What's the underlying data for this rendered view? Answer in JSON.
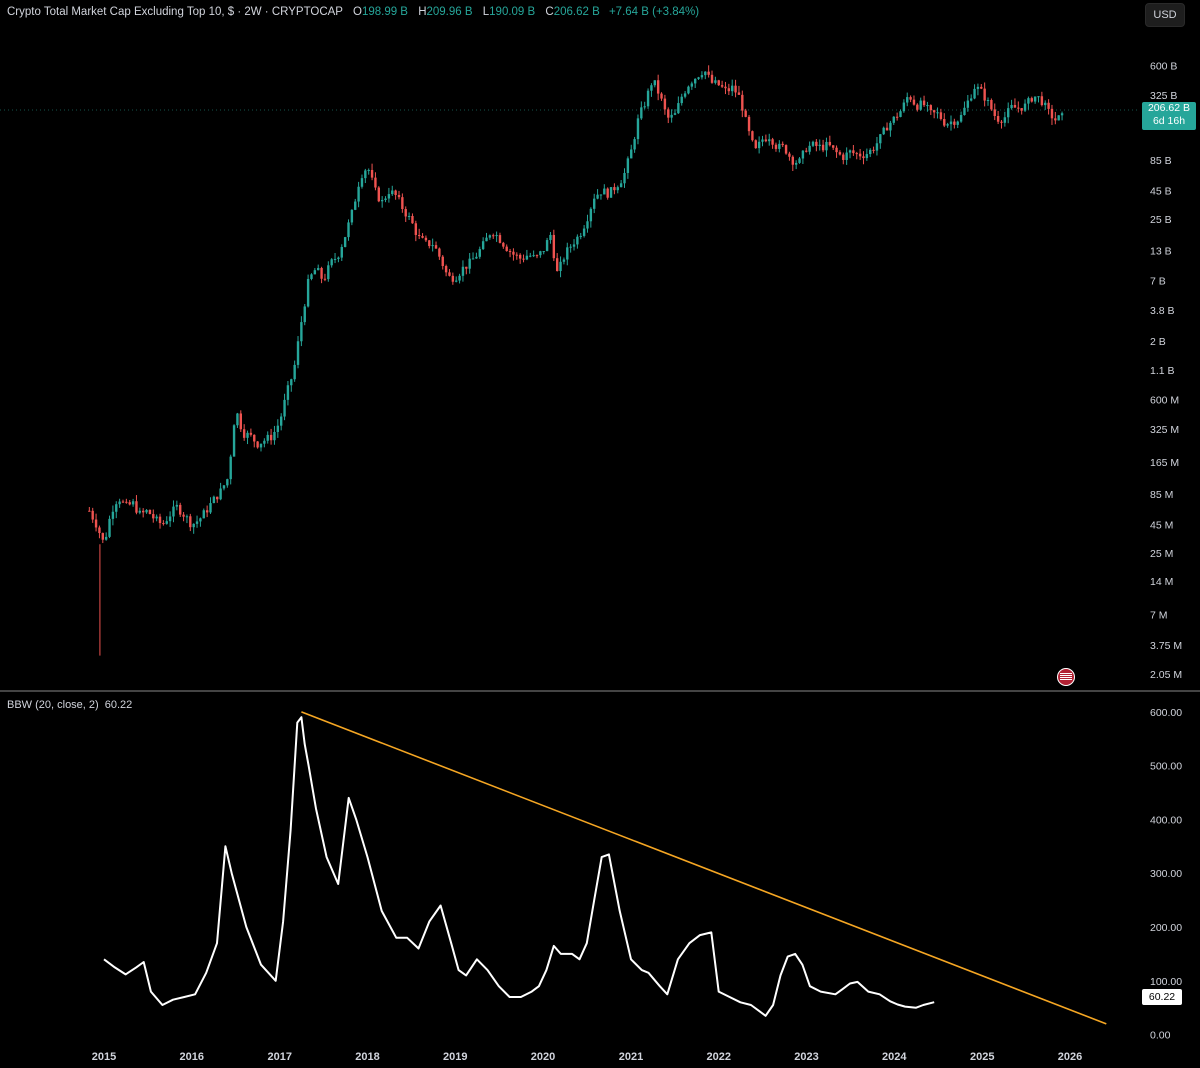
{
  "header": {
    "title": "Crypto Total Market Cap Excluding Top 10, $ · 2W · CRYPTOCAP",
    "o_label": "O",
    "o_value": "198.99 B",
    "h_label": "H",
    "h_value": "209.96 B",
    "l_label": "L",
    "l_value": "190.09 B",
    "c_label": "C",
    "c_value": "206.62 B",
    "change": "+7.64 B (+3.84%)"
  },
  "currency_button": "USD",
  "price_tag": {
    "price": "206.62 B",
    "countdown": "6d 16h"
  },
  "indicator": {
    "title": "BBW (20, close, 2)",
    "value": "60.22",
    "tag": "60.22"
  },
  "colors": {
    "up": "#26a69a",
    "down": "#ef5350",
    "bbw_line": "#ffffff",
    "trendline": "#f5a623",
    "background": "#000000"
  },
  "icons": {
    "flag": "us-flag-icon"
  },
  "chart_data": [
    {
      "type": "candlestick",
      "title": "Crypto Total Market Cap Excluding Top 10, $ · 2W · CRYPTOCAP",
      "scale": "log",
      "price_axis_ticks": [
        "600 B",
        "325 B",
        "85 B",
        "45 B",
        "25 B",
        "13 B",
        "7 B",
        "3.8 B",
        "2 B",
        "1.1 B",
        "600 M",
        "325 M",
        "165 M",
        "85 M",
        "45 M",
        "25 M",
        "14 M",
        "7 M",
        "3.75 M",
        "2.05 M"
      ],
      "price_axis_values": [
        600000000000.0,
        325000000000.0,
        85000000000.0,
        45000000000.0,
        25000000000.0,
        13000000000.0,
        7000000000.0,
        3800000000.0,
        2000000000.0,
        1100000000.0,
        600000000.0,
        325000000.0,
        165000000.0,
        85000000.0,
        45000000.0,
        25000000.0,
        14000000.0,
        7000000.0,
        3750000.0,
        2050000.0
      ],
      "ylim": [
        1600000.0,
        1300000000000.0
      ],
      "close_path": [
        [
          "2014-11-01",
          60000000.0
        ],
        [
          "2014-12-01",
          45000000.0
        ],
        [
          "2015-01-01",
          30000000.0
        ],
        [
          "2015-02-01",
          60000000.0
        ],
        [
          "2015-03-01",
          80000000.0
        ],
        [
          "2015-04-01",
          65000000.0
        ],
        [
          "2015-05-01",
          70000000.0
        ],
        [
          "2015-06-01",
          55000000.0
        ],
        [
          "2015-07-01",
          60000000.0
        ],
        [
          "2015-08-01",
          50000000.0
        ],
        [
          "2015-09-01",
          45000000.0
        ],
        [
          "2015-10-01",
          55000000.0
        ],
        [
          "2015-11-01",
          65000000.0
        ],
        [
          "2015-12-01",
          55000000.0
        ],
        [
          "2016-01-01",
          45000000.0
        ],
        [
          "2016-02-01",
          50000000.0
        ],
        [
          "2016-03-01",
          60000000.0
        ],
        [
          "2016-04-01",
          75000000.0
        ],
        [
          "2016-05-01",
          90000000.0
        ],
        [
          "2016-06-01",
          120000000.0
        ],
        [
          "2016-07-01",
          500000000.0
        ],
        [
          "2016-08-01",
          300000000.0
        ],
        [
          "2016-09-01",
          280000000.0
        ],
        [
          "2016-10-01",
          240000000.0
        ],
        [
          "2016-11-01",
          260000000.0
        ],
        [
          "2016-12-01",
          280000000.0
        ],
        [
          "2017-01-01",
          380000000.0
        ],
        [
          "2017-02-01",
          700000000.0
        ],
        [
          "2017-03-01",
          1100000000.0
        ],
        [
          "2017-04-01",
          3000000000.0
        ],
        [
          "2017-05-01",
          7000000000.0
        ],
        [
          "2017-06-01",
          9000000000.0
        ],
        [
          "2017-07-01",
          7000000000.0
        ],
        [
          "2017-08-01",
          10000000000.0
        ],
        [
          "2017-09-01",
          12000000000.0
        ],
        [
          "2017-10-01",
          18000000000.0
        ],
        [
          "2017-11-01",
          30000000000.0
        ],
        [
          "2017-12-01",
          60000000000.0
        ],
        [
          "2018-01-01",
          75000000000.0
        ],
        [
          "2018-02-01",
          45000000000.0
        ],
        [
          "2018-03-01",
          35000000000.0
        ],
        [
          "2018-04-01",
          45000000000.0
        ],
        [
          "2018-05-01",
          40000000000.0
        ],
        [
          "2018-06-01",
          30000000000.0
        ],
        [
          "2018-07-01",
          24000000000.0
        ],
        [
          "2018-08-01",
          17000000000.0
        ],
        [
          "2018-09-01",
          15000000000.0
        ],
        [
          "2018-10-01",
          15000000000.0
        ],
        [
          "2018-11-01",
          11000000000.0
        ],
        [
          "2018-12-01",
          7500000000.0
        ],
        [
          "2019-01-01",
          7500000000.0
        ],
        [
          "2019-02-01",
          9000000000.0
        ],
        [
          "2019-03-01",
          10000000000.0
        ],
        [
          "2019-04-01",
          12000000000.0
        ],
        [
          "2019-05-01",
          15000000000.0
        ],
        [
          "2019-06-01",
          20000000000.0
        ],
        [
          "2019-07-01",
          17000000000.0
        ],
        [
          "2019-08-01",
          14000000000.0
        ],
        [
          "2019-09-01",
          12000000000.0
        ],
        [
          "2019-10-01",
          11000000000.0
        ],
        [
          "2019-11-01",
          12000000000.0
        ],
        [
          "2019-12-01",
          11000000000.0
        ],
        [
          "2020-01-01",
          13000000000.0
        ],
        [
          "2020-02-01",
          18000000000.0
        ],
        [
          "2020-03-01",
          8000000000.0
        ],
        [
          "2020-04-01",
          12000000000.0
        ],
        [
          "2020-05-01",
          15000000000.0
        ],
        [
          "2020-06-01",
          18000000000.0
        ],
        [
          "2020-07-01",
          25000000000.0
        ],
        [
          "2020-08-01",
          40000000000.0
        ],
        [
          "2020-09-01",
          45000000000.0
        ],
        [
          "2020-10-01",
          42000000000.0
        ],
        [
          "2020-11-01",
          50000000000.0
        ],
        [
          "2020-12-01",
          60000000000.0
        ],
        [
          "2021-01-01",
          100000000000.0
        ],
        [
          "2021-02-01",
          200000000000.0
        ],
        [
          "2021-03-01",
          280000000000.0
        ],
        [
          "2021-04-01",
          450000000000.0
        ],
        [
          "2021-05-01",
          320000000000.0
        ],
        [
          "2021-06-01",
          200000000000.0
        ],
        [
          "2021-07-01",
          210000000000.0
        ],
        [
          "2021-08-01",
          320000000000.0
        ],
        [
          "2021-09-01",
          420000000000.0
        ],
        [
          "2021-10-01",
          480000000000.0
        ],
        [
          "2021-11-01",
          550000000000.0
        ],
        [
          "2021-12-01",
          420000000000.0
        ],
        [
          "2022-01-01",
          400000000000.0
        ],
        [
          "2022-02-01",
          350000000000.0
        ],
        [
          "2022-03-01",
          380000000000.0
        ],
        [
          "2022-04-01",
          300000000000.0
        ],
        [
          "2022-05-01",
          160000000000.0
        ],
        [
          "2022-06-01",
          100000000000.0
        ],
        [
          "2022-07-01",
          130000000000.0
        ],
        [
          "2022-08-01",
          140000000000.0
        ],
        [
          "2022-09-01",
          110000000000.0
        ],
        [
          "2022-10-01",
          110000000000.0
        ],
        [
          "2022-11-01",
          85000000000.0
        ],
        [
          "2022-12-01",
          80000000000.0
        ],
        [
          "2023-01-01",
          110000000000.0
        ],
        [
          "2023-02-01",
          115000000000.0
        ],
        [
          "2023-03-01",
          110000000000.0
        ],
        [
          "2023-04-01",
          115000000000.0
        ],
        [
          "2023-05-01",
          100000000000.0
        ],
        [
          "2023-06-01",
          90000000000.0
        ],
        [
          "2023-07-01",
          100000000000.0
        ],
        [
          "2023-08-01",
          95000000000.0
        ],
        [
          "2023-09-01",
          95000000000.0
        ],
        [
          "2023-10-01",
          105000000000.0
        ],
        [
          "2023-11-01",
          130000000000.0
        ],
        [
          "2023-12-01",
          170000000000.0
        ],
        [
          "2024-01-01",
          200000000000.0
        ],
        [
          "2024-02-01",
          240000000000.0
        ],
        [
          "2024-03-01",
          330000000000.0
        ],
        [
          "2024-04-01",
          260000000000.0
        ],
        [
          "2024-05-01",
          270000000000.0
        ],
        [
          "2024-06-01",
          220000000000.0
        ],
        [
          "2024-07-01",
          220000000000.0
        ],
        [
          "2024-08-01",
          180000000000.0
        ],
        [
          "2024-09-01",
          190000000000.0
        ],
        [
          "2024-10-01",
          200000000000.0
        ],
        [
          "2024-11-01",
          280000000000.0
        ],
        [
          "2024-12-01",
          390000000000.0
        ],
        [
          "2025-01-01",
          340000000000.0
        ],
        [
          "2025-02-01",
          260000000000.0
        ],
        [
          "2025-03-01",
          200000000000.0
        ],
        [
          "2025-04-01",
          200000000000.0
        ],
        [
          "2025-05-01",
          250000000000.0
        ],
        [
          "2025-06-01",
          250000000000.0
        ],
        [
          "2025-07-01",
          260000000000.0
        ],
        [
          "2025-08-01",
          320000000000.0
        ],
        [
          "2025-09-01",
          300000000000.0
        ],
        [
          "2025-10-01",
          230000000000.0
        ],
        [
          "2025-11-01",
          195000000000.0
        ],
        [
          "2025-12-01",
          206620000000.0
        ]
      ],
      "last_close": 206620000000.0
    },
    {
      "type": "line",
      "title": "BBW (20, close, 2)",
      "y_ticks": [
        600,
        500,
        400,
        300,
        200,
        100,
        0
      ],
      "y_tick_labels": [
        "600.00",
        "500.00",
        "400.00",
        "300.00",
        "200.00",
        "100.00",
        "0.00"
      ],
      "ylim": [
        -10,
        622
      ],
      "x_ticks": [
        "2015",
        "2016",
        "2017",
        "2018",
        "2019",
        "2020",
        "2021",
        "2022",
        "2023",
        "2024",
        "2025",
        "2026"
      ],
      "series": [
        {
          "values": [
            [
              "2015-01-01",
              140
            ],
            [
              "2015-02-15",
              125
            ],
            [
              "2015-04-01",
              112
            ],
            [
              "2015-05-15",
              125
            ],
            [
              "2015-06-15",
              135
            ],
            [
              "2015-07-15",
              80
            ],
            [
              "2015-09-01",
              55
            ],
            [
              "2015-10-15",
              65
            ],
            [
              "2015-12-01",
              70
            ],
            [
              "2016-01-15",
              75
            ],
            [
              "2016-03-01",
              115
            ],
            [
              "2016-04-15",
              170
            ],
            [
              "2016-05-20",
              350
            ],
            [
              "2016-06-15",
              300
            ],
            [
              "2016-08-15",
              200
            ],
            [
              "2016-10-15",
              130
            ],
            [
              "2016-12-15",
              100
            ],
            [
              "2017-01-15",
              210
            ],
            [
              "2017-02-15",
              380
            ],
            [
              "2017-03-15",
              580
            ],
            [
              "2017-04-01",
              590
            ],
            [
              "2017-04-15",
              540
            ],
            [
              "2017-05-01",
              500
            ],
            [
              "2017-06-01",
              420
            ],
            [
              "2017-07-15",
              330
            ],
            [
              "2017-09-01",
              280
            ],
            [
              "2017-10-15",
              440
            ],
            [
              "2017-11-15",
              400
            ],
            [
              "2018-01-01",
              330
            ],
            [
              "2018-03-01",
              230
            ],
            [
              "2018-05-01",
              180
            ],
            [
              "2018-06-15",
              180
            ],
            [
              "2018-08-01",
              160
            ],
            [
              "2018-09-15",
              210
            ],
            [
              "2018-11-01",
              240
            ],
            [
              "2018-12-15",
              170
            ],
            [
              "2019-01-15",
              120
            ],
            [
              "2019-02-15",
              110
            ],
            [
              "2019-04-01",
              140
            ],
            [
              "2019-05-15",
              120
            ],
            [
              "2019-07-01",
              90
            ],
            [
              "2019-08-15",
              70
            ],
            [
              "2019-10-01",
              70
            ],
            [
              "2019-11-15",
              80
            ],
            [
              "2019-12-15",
              90
            ],
            [
              "2020-01-15",
              120
            ],
            [
              "2020-02-15",
              165
            ],
            [
              "2020-03-15",
              150
            ],
            [
              "2020-05-01",
              150
            ],
            [
              "2020-06-01",
              140
            ],
            [
              "2020-07-01",
              170
            ],
            [
              "2020-08-01",
              250
            ],
            [
              "2020-09-01",
              330
            ],
            [
              "2020-10-01",
              335
            ],
            [
              "2020-11-15",
              230
            ],
            [
              "2021-01-01",
              140
            ],
            [
              "2021-02-15",
              120
            ],
            [
              "2021-03-15",
              115
            ],
            [
              "2021-05-01",
              90
            ],
            [
              "2021-06-01",
              75
            ],
            [
              "2021-07-15",
              140
            ],
            [
              "2021-09-01",
              170
            ],
            [
              "2021-10-15",
              185
            ],
            [
              "2021-12-01",
              190
            ],
            [
              "2022-01-01",
              80
            ],
            [
              "2022-02-15",
              70
            ],
            [
              "2022-04-01",
              60
            ],
            [
              "2022-05-15",
              55
            ],
            [
              "2022-06-15",
              45
            ],
            [
              "2022-07-15",
              35
            ],
            [
              "2022-08-15",
              55
            ],
            [
              "2022-09-15",
              110
            ],
            [
              "2022-10-15",
              145
            ],
            [
              "2022-11-15",
              150
            ],
            [
              "2022-12-15",
              130
            ],
            [
              "2023-01-15",
              90
            ],
            [
              "2023-03-01",
              80
            ],
            [
              "2023-05-01",
              75
            ],
            [
              "2023-06-01",
              85
            ],
            [
              "2023-07-01",
              95
            ],
            [
              "2023-08-01",
              98
            ],
            [
              "2023-09-15",
              80
            ],
            [
              "2023-11-01",
              75
            ],
            [
              "2023-12-15",
              62
            ],
            [
              "2024-01-15",
              56
            ],
            [
              "2024-02-15",
              52
            ],
            [
              "2024-04-01",
              50
            ],
            [
              "2024-05-01",
              55
            ],
            [
              "2024-06-15",
              60.22
            ]
          ]
        }
      ],
      "trendline": {
        "from": [
          "2017-04-01",
          600
        ],
        "to": [
          "2026-06-01",
          20
        ]
      }
    }
  ]
}
